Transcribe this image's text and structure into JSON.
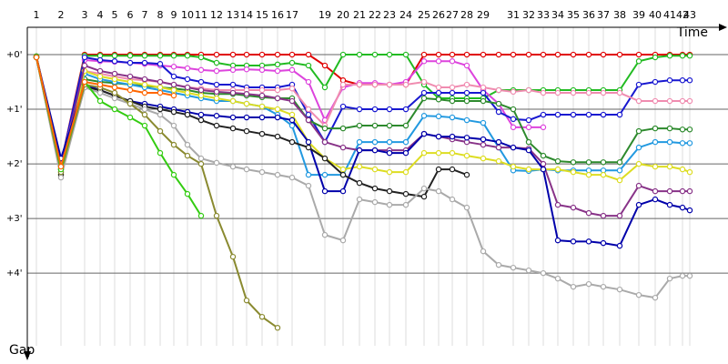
{
  "chart_data": {
    "type": "line",
    "x_label": "Time",
    "y_label": "Gap",
    "xlim": [
      0,
      770
    ],
    "ylim": [
      -0.5,
      5.33
    ],
    "y_inverted": true,
    "grid": true,
    "xticks": [
      {
        "value": 10,
        "label": "1"
      },
      {
        "value": 37,
        "label": "2"
      },
      {
        "value": 63,
        "label": "3"
      },
      {
        "value": 80,
        "label": "4"
      },
      {
        "value": 96,
        "label": "5"
      },
      {
        "value": 113,
        "label": "6"
      },
      {
        "value": 129,
        "label": "7"
      },
      {
        "value": 146,
        "label": "8"
      },
      {
        "value": 161,
        "label": "9"
      },
      {
        "value": 176,
        "label": "10"
      },
      {
        "value": 191,
        "label": "11"
      },
      {
        "value": 208,
        "label": "12"
      },
      {
        "value": 226,
        "label": "13"
      },
      {
        "value": 241,
        "label": "14"
      },
      {
        "value": 258,
        "label": "15"
      },
      {
        "value": 275,
        "label": "16"
      },
      {
        "value": 291,
        "label": "17"
      },
      {
        "value": 327,
        "label": "19"
      },
      {
        "value": 347,
        "label": "20"
      },
      {
        "value": 365,
        "label": "21"
      },
      {
        "value": 382,
        "label": "22"
      },
      {
        "value": 398,
        "label": "23"
      },
      {
        "value": 416,
        "label": "24"
      },
      {
        "value": 436,
        "label": "25"
      },
      {
        "value": 452,
        "label": "26"
      },
      {
        "value": 467,
        "label": "27"
      },
      {
        "value": 483,
        "label": "28"
      },
      {
        "value": 501,
        "label": "29"
      },
      {
        "value": 534,
        "label": "31"
      },
      {
        "value": 551,
        "label": "32"
      },
      {
        "value": 567,
        "label": "33"
      },
      {
        "value": 583,
        "label": "34"
      },
      {
        "value": 600,
        "label": "35"
      },
      {
        "value": 617,
        "label": "36"
      },
      {
        "value": 633,
        "label": "37"
      },
      {
        "value": 651,
        "label": "38"
      },
      {
        "value": 672,
        "label": "39"
      },
      {
        "value": 690,
        "label": "40"
      },
      {
        "value": 706,
        "label": "41"
      },
      {
        "value": 720,
        "label": "42"
      },
      {
        "value": 728,
        "label": "43"
      }
    ],
    "yticks": [
      {
        "value": 0,
        "label": "+0'"
      },
      {
        "value": 1,
        "label": "+1'"
      },
      {
        "value": 2,
        "label": "+2'"
      },
      {
        "value": 3,
        "label": "+3'"
      },
      {
        "value": 4,
        "label": "+4'"
      }
    ],
    "x": [
      10,
      37,
      63,
      80,
      96,
      113,
      129,
      146,
      161,
      176,
      191,
      208,
      226,
      241,
      258,
      275,
      291,
      309,
      327,
      347,
      365,
      382,
      398,
      416,
      436,
      452,
      467,
      483,
      501,
      518,
      534,
      551,
      567,
      583,
      600,
      617,
      633,
      651,
      672,
      690,
      706,
      720,
      728
    ],
    "series": [
      {
        "color": "#e00000",
        "values": [
          0.03,
          2.0,
          0,
          0,
          0,
          0,
          0,
          0,
          0,
          0,
          0,
          0,
          0,
          0,
          0,
          0,
          0,
          0,
          0.2,
          0.47,
          0.55,
          0.55,
          0.55,
          0.55,
          0,
          0,
          0,
          0,
          0,
          0,
          0,
          0,
          0,
          0,
          0,
          0,
          0,
          0,
          0,
          0,
          0,
          0,
          0
        ]
      },
      {
        "color": "#22bb22",
        "values": [
          0.03,
          2.1,
          0.02,
          0.02,
          0.02,
          0.02,
          0.02,
          0.02,
          0.02,
          0.02,
          0.05,
          0.15,
          0.2,
          0.2,
          0.2,
          0.18,
          0.15,
          0.2,
          0.6,
          0,
          0,
          0,
          0,
          0,
          0.55,
          0.8,
          0.8,
          0.8,
          0.8,
          0.65,
          0.65,
          0.65,
          0.65,
          0.65,
          0.65,
          0.65,
          0.65,
          0.65,
          0.12,
          0.05,
          0.02,
          0.02,
          0.02
        ]
      },
      {
        "color": "#dd44dd",
        "values": [
          0.05,
          2.05,
          0.1,
          0.12,
          0.13,
          0.15,
          0.17,
          0.2,
          0.22,
          0.25,
          0.28,
          0.3,
          0.28,
          0.27,
          0.28,
          0.3,
          0.28,
          0.5,
          1.2,
          0.6,
          0.52,
          0.52,
          0.55,
          0.5,
          0.12,
          0.12,
          0.12,
          0.2,
          0.65,
          0.9,
          1.33,
          1.33,
          1.33,
          null,
          null,
          null,
          null,
          null,
          null,
          null,
          null,
          null,
          null
        ]
      },
      {
        "color": "#1818d0",
        "values": [
          0.05,
          2.0,
          0.05,
          0.1,
          0.12,
          0.15,
          0.15,
          0.17,
          0.4,
          0.45,
          0.5,
          0.55,
          0.55,
          0.6,
          0.6,
          0.6,
          0.55,
          1.1,
          1.6,
          0.95,
          1.0,
          1.0,
          1.0,
          1.0,
          0.7,
          0.7,
          0.7,
          0.7,
          0.7,
          1.05,
          1.18,
          1.2,
          1.1,
          1.1,
          1.1,
          1.1,
          1.1,
          1.1,
          0.55,
          0.5,
          0.47,
          0.47,
          0.47
        ]
      },
      {
        "color": "#f08cb0",
        "values": [
          0.05,
          2.0,
          0.3,
          0.35,
          0.4,
          0.45,
          0.47,
          0.5,
          0.55,
          0.6,
          0.62,
          0.65,
          0.65,
          0.65,
          0.65,
          0.65,
          0.62,
          1.0,
          1.3,
          0.55,
          0.55,
          0.55,
          0.55,
          0.55,
          0.5,
          0.6,
          0.6,
          0.55,
          0.6,
          0.65,
          0.68,
          0.65,
          0.7,
          0.7,
          0.7,
          0.7,
          0.7,
          0.7,
          0.85,
          0.85,
          0.85,
          0.85,
          0.85
        ]
      },
      {
        "color": "#2d8a2d",
        "values": [
          0.05,
          2.15,
          0.45,
          0.5,
          0.52,
          0.55,
          0.57,
          0.6,
          0.62,
          0.65,
          0.7,
          0.72,
          0.72,
          0.75,
          0.78,
          0.8,
          0.8,
          1.2,
          1.35,
          1.35,
          1.3,
          1.3,
          1.3,
          1.3,
          0.8,
          0.82,
          0.85,
          0.85,
          0.85,
          0.9,
          1.0,
          1.6,
          1.85,
          1.95,
          1.97,
          1.97,
          1.97,
          1.97,
          1.4,
          1.35,
          1.35,
          1.37,
          1.37
        ]
      },
      {
        "color": "#2299e0",
        "values": [
          0.05,
          2.1,
          0.35,
          0.45,
          0.5,
          0.55,
          0.6,
          0.65,
          0.7,
          0.75,
          0.8,
          0.85,
          0.85,
          0.9,
          0.95,
          1.1,
          1.3,
          2.2,
          2.2,
          2.2,
          1.6,
          1.6,
          1.6,
          1.6,
          1.12,
          1.13,
          1.15,
          1.2,
          1.25,
          1.7,
          2.12,
          2.13,
          2.1,
          2.12,
          2.12,
          2.12,
          2.12,
          2.12,
          1.7,
          1.6,
          1.6,
          1.62,
          1.62
        ]
      },
      {
        "color": "#dddd22",
        "values": [
          0.05,
          2.2,
          0.3,
          0.4,
          0.45,
          0.5,
          0.55,
          0.6,
          0.65,
          0.7,
          0.75,
          0.8,
          0.85,
          0.9,
          0.95,
          1.0,
          1.1,
          1.6,
          1.9,
          2.1,
          2.05,
          2.1,
          2.15,
          2.15,
          1.8,
          1.8,
          1.8,
          1.85,
          1.9,
          1.95,
          2.05,
          2.1,
          2.1,
          2.1,
          2.15,
          2.2,
          2.2,
          2.3,
          2.0,
          2.05,
          2.05,
          2.1,
          2.15
        ]
      },
      {
        "color": "#883388",
        "values": [
          0.05,
          2.1,
          0.2,
          0.3,
          0.35,
          0.4,
          0.45,
          0.5,
          0.55,
          0.6,
          0.65,
          0.68,
          0.7,
          0.72,
          0.75,
          0.8,
          0.85,
          1.2,
          1.6,
          1.7,
          1.75,
          1.75,
          1.75,
          1.75,
          1.45,
          1.5,
          1.55,
          1.6,
          1.65,
          1.7,
          1.7,
          1.72,
          2.0,
          2.75,
          2.8,
          2.9,
          2.95,
          2.95,
          2.4,
          2.5,
          2.5,
          2.5,
          2.5
        ]
      },
      {
        "color": "#0000aa",
        "values": [
          0.05,
          1.9,
          0.55,
          0.65,
          0.75,
          0.85,
          0.9,
          0.95,
          1.0,
          1.05,
          1.1,
          1.12,
          1.15,
          1.15,
          1.15,
          1.15,
          1.2,
          1.6,
          2.5,
          2.5,
          1.75,
          1.75,
          1.8,
          1.8,
          1.45,
          1.5,
          1.5,
          1.52,
          1.55,
          1.6,
          1.7,
          1.75,
          2.1,
          3.4,
          3.42,
          3.42,
          3.45,
          3.5,
          2.75,
          2.65,
          2.75,
          2.8,
          2.85
        ]
      },
      {
        "color": "#222222",
        "values": [
          0.05,
          2.2,
          0.6,
          0.65,
          0.75,
          0.85,
          0.95,
          1.0,
          1.05,
          1.1,
          1.2,
          1.3,
          1.35,
          1.4,
          1.45,
          1.5,
          1.6,
          1.7,
          1.9,
          2.2,
          2.35,
          2.45,
          2.5,
          2.55,
          2.6,
          2.1,
          2.1,
          2.2,
          null,
          null,
          null,
          null,
          null,
          null,
          null,
          null,
          null,
          null,
          null,
          null,
          null,
          null,
          null
        ]
      },
      {
        "color": "#aaaaaa",
        "values": [
          0.05,
          2.25,
          0.6,
          0.7,
          0.8,
          0.9,
          1.0,
          1.1,
          1.3,
          1.65,
          1.9,
          1.98,
          2.05,
          2.1,
          2.15,
          2.2,
          2.25,
          2.4,
          3.3,
          3.4,
          2.65,
          2.7,
          2.75,
          2.75,
          2.45,
          2.5,
          2.65,
          2.8,
          3.6,
          3.85,
          3.9,
          3.95,
          4.0,
          4.1,
          4.25,
          4.2,
          4.25,
          4.3,
          4.4,
          4.45,
          4.1,
          4.05,
          4.05
        ]
      },
      {
        "color": "#8a8a30",
        "values": [
          0.05,
          2.15,
          0.55,
          0.6,
          0.7,
          0.9,
          1.1,
          1.4,
          1.65,
          1.85,
          2.0,
          2.95,
          3.7,
          4.5,
          4.8,
          5.0,
          null,
          null,
          null,
          null,
          null,
          null,
          null,
          null,
          null,
          null,
          null,
          null,
          null,
          null,
          null,
          null,
          null,
          null,
          null,
          null,
          null,
          null,
          null,
          null,
          null,
          null,
          null
        ]
      },
      {
        "color": "#33cc11",
        "values": [
          0.05,
          2.1,
          0.5,
          0.85,
          1.0,
          1.15,
          1.3,
          1.8,
          2.2,
          2.55,
          2.95,
          null,
          null,
          null,
          null,
          null,
          null,
          null,
          null,
          null,
          null,
          null,
          null,
          null,
          null,
          null,
          null,
          null,
          null,
          null,
          null,
          null,
          null,
          null,
          null,
          null,
          null,
          null,
          null,
          null,
          null,
          null,
          null
        ]
      },
      {
        "color": "#ff6600",
        "values": [
          0.05,
          2.05,
          0.5,
          0.55,
          0.6,
          0.65,
          0.7,
          0.7,
          0.75,
          null,
          null,
          null,
          null,
          null,
          null,
          null,
          null,
          null,
          null,
          null,
          null,
          null,
          null,
          null,
          null,
          null,
          null,
          null,
          null,
          null,
          null,
          null,
          null,
          null,
          null,
          null,
          null,
          null,
          null,
          null,
          null,
          null,
          null
        ]
      }
    ]
  }
}
